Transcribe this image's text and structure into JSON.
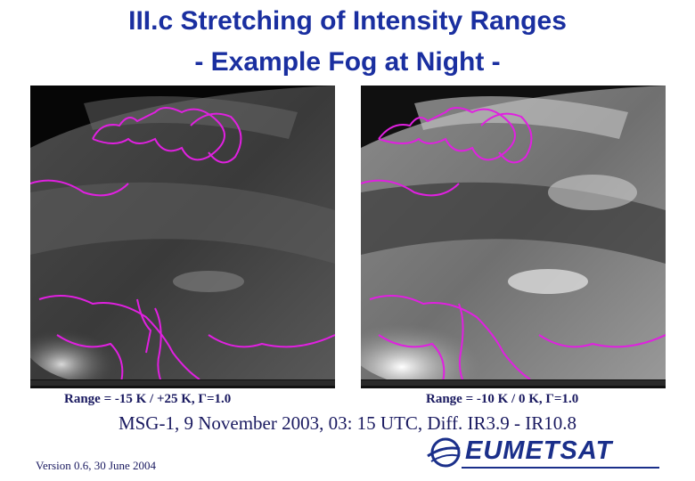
{
  "slide": {
    "title_line1": "III.c Stretching of Intensity Ranges",
    "title_line2": "- Example Fog at Night -",
    "caption_left": "Range = -15 K / +25 K, Γ=1.0",
    "caption_right": "Range = -10 K / 0 K, Γ=1.0",
    "subtitle": "MSG-1, 9 November 2003, 03: 15 UTC, Diff. IR3.9 - IR10.8",
    "version": "Version 0.6, 30 June 2004",
    "logo_text": "EUMETSAT"
  },
  "colors": {
    "title": "#1a2fa0",
    "coastline": "#e020e0",
    "logo": "#1a2f8a"
  },
  "icons": {
    "logo_mark": "eumetsat-globe-icon"
  }
}
